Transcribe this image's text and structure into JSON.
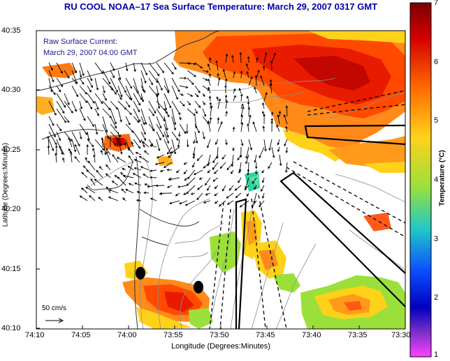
{
  "title": "RU COOL  NOAA–17  Sea Surface Temperature:  March 29, 2007 0317 GMT",
  "annotation": {
    "line1": "Raw Surface Current:",
    "line2": "March 29, 2007 04:00 GMT"
  },
  "axes": {
    "ylabel": "Latitude (Degrees:Minutes)",
    "xlabel": "Longitude (Degrees:Minutes)",
    "y_ticks": [
      "40:35",
      "40:30",
      "40:25",
      "40:20",
      "40:15",
      "40:10"
    ],
    "x_ticks": [
      "74:10",
      "74:05",
      "74:00",
      "73:55",
      "73:50",
      "73:45",
      "73:40",
      "73:35",
      "73:30"
    ]
  },
  "colorbar": {
    "label": "Temperature (°C)",
    "ticks": [
      "7",
      "6",
      "5",
      "4",
      "3",
      "2",
      "1"
    ],
    "min": 1,
    "max": 7,
    "colors": [
      "#7a0000",
      "#d40000",
      "#ff6a00",
      "#ffd21a",
      "#9be03a",
      "#1ec8c8",
      "#0a4cff",
      "#0000c0",
      "#7a2fc8",
      "#ff40ff"
    ]
  },
  "scale_bar": {
    "label": "50 cm/s"
  },
  "map_extent": {
    "lon_west": "74:10",
    "lon_east": "73:30",
    "lat_south": "40:10",
    "lat_north": "40:35"
  }
}
